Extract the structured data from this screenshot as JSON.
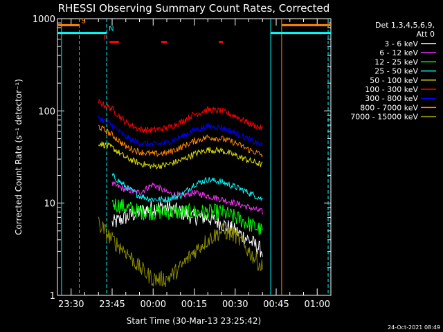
{
  "chart_data": {
    "type": "line",
    "title": "RHESSI Observing Summary Count Rates, Corrected",
    "xlabel": "Start Time (30-Mar-13 23:25:42)",
    "ylabel": "Corrected Count Rate (s⁻¹ detector⁻¹)",
    "y_scale": "log",
    "ylim": [
      1,
      1000
    ],
    "xlim_minutes": [
      -30,
      70
    ],
    "x_ticks": [
      {
        "label": "23:30",
        "t": -25
      },
      {
        "label": "23:45",
        "t": -10
      },
      {
        "label": "00:00",
        "t": 5
      },
      {
        "label": "00:15",
        "t": 20
      },
      {
        "label": "00:30",
        "t": 35
      },
      {
        "label": "00:45",
        "t": 50
      },
      {
        "label": "01:00",
        "t": 65
      }
    ],
    "y_ticks": [
      {
        "label": "1",
        "v": 1
      },
      {
        "label": "10",
        "v": 10
      },
      {
        "label": "100",
        "v": 100
      },
      {
        "label": "1000",
        "v": 1000
      }
    ],
    "legend_title": [
      "Det 1,3,4,5,6,9,",
      "Att 0"
    ],
    "legend_position": "right",
    "series": [
      {
        "name": "3 - 6 keV",
        "color": "#ffffff",
        "t": [
          -10,
          -5,
          0,
          5,
          10,
          15,
          20,
          25,
          30,
          35,
          40,
          45
        ],
        "values": [
          6,
          7,
          8,
          9,
          9,
          8,
          7,
          7,
          6,
          5,
          4,
          3
        ]
      },
      {
        "name": "6 - 12 keV",
        "color": "#ff33ff",
        "t": [
          -10,
          -5,
          0,
          5,
          10,
          15,
          20,
          25,
          30,
          35,
          40,
          45
        ],
        "values": [
          16,
          14,
          13,
          16,
          13,
          12,
          13,
          12,
          11,
          10,
          9,
          8
        ]
      },
      {
        "name": "12 - 25 keV",
        "color": "#00ff00",
        "t": [
          -10,
          -5,
          0,
          5,
          10,
          15,
          20,
          25,
          30,
          35,
          40,
          45
        ],
        "values": [
          10,
          9,
          8,
          8,
          8,
          8,
          8,
          8,
          8,
          7,
          6,
          5
        ]
      },
      {
        "name": "25 - 50 keV",
        "color": "#00ffff",
        "t": [
          -10,
          -5,
          0,
          5,
          10,
          15,
          20,
          25,
          30,
          35,
          40,
          45
        ],
        "values": [
          20,
          15,
          12,
          11,
          11,
          12,
          16,
          18,
          17,
          15,
          13,
          11
        ]
      },
      {
        "name": "50 - 100 keV",
        "color": "#dddd00",
        "t": [
          -15,
          -10,
          -5,
          0,
          5,
          10,
          15,
          20,
          25,
          30,
          35,
          40,
          45
        ],
        "values": [
          45,
          40,
          31,
          27,
          25,
          26,
          29,
          34,
          38,
          37,
          33,
          29,
          26
        ]
      },
      {
        "name": "100 - 300 keV",
        "color": "#ff0000",
        "t": [
          -15,
          -10,
          -5,
          0,
          5,
          10,
          15,
          20,
          25,
          30,
          35,
          40,
          45
        ],
        "values": [
          125,
          105,
          75,
          63,
          62,
          65,
          75,
          92,
          103,
          100,
          88,
          74,
          64
        ]
      },
      {
        "name": "300 - 800 keV",
        "color": "#0000ff",
        "t": [
          -15,
          -10,
          -5,
          0,
          5,
          10,
          15,
          20,
          25,
          30,
          35,
          40,
          45
        ],
        "values": [
          85,
          70,
          52,
          45,
          43,
          45,
          52,
          62,
          68,
          66,
          58,
          49,
          42
        ]
      },
      {
        "name": "800 - 7000 keV",
        "color": "#ff8800",
        "t": [
          -15,
          -10,
          -5,
          0,
          5,
          10,
          15,
          20,
          25,
          30,
          35,
          40,
          45
        ],
        "values": [
          68,
          55,
          41,
          36,
          34,
          35,
          40,
          47,
          52,
          50,
          45,
          38,
          33
        ]
      },
      {
        "name": "7000 - 15000 keV",
        "color": "#888800",
        "t": [
          -15,
          -10,
          -5,
          0,
          5,
          10,
          15,
          20,
          25,
          30,
          35,
          40,
          45
        ],
        "values": [
          6,
          4,
          3,
          2,
          1.5,
          1.5,
          2,
          3,
          4,
          5,
          4.5,
          3,
          2
        ]
      }
    ],
    "flag_lines": [
      {
        "label": "S",
        "color": "#ff8800",
        "y_value": 850,
        "segments": [
          [
            -30,
            -22
          ],
          [
            52,
            70
          ]
        ]
      },
      {
        "label": "N",
        "color": "#00ffff",
        "y_value": 700,
        "segments": [
          [
            -30,
            -12
          ],
          [
            48,
            70
          ]
        ]
      },
      {
        "label": "F",
        "color": "#ff0000",
        "y_value": 560,
        "segments": [
          [
            -11,
            -7.5
          ],
          [
            8,
            10
          ],
          [
            29,
            30.5
          ]
        ]
      }
    ],
    "vertical_markers": [
      {
        "color": "#00ffff",
        "t": -28.5,
        "style": "solid"
      },
      {
        "color": "#ff8800",
        "t": -22,
        "style": "dashed"
      },
      {
        "color": "#00ffff",
        "t": -12,
        "style": "dashed"
      },
      {
        "color": "#00ffff",
        "t": 48,
        "style": "solid"
      },
      {
        "color": "#ff8800",
        "t": 52,
        "style": "solid"
      },
      {
        "color": "#00ffff",
        "t": 69,
        "style": "dashed"
      }
    ]
  },
  "footer": {
    "timestamp": "24-Oct-2021 08:49"
  }
}
